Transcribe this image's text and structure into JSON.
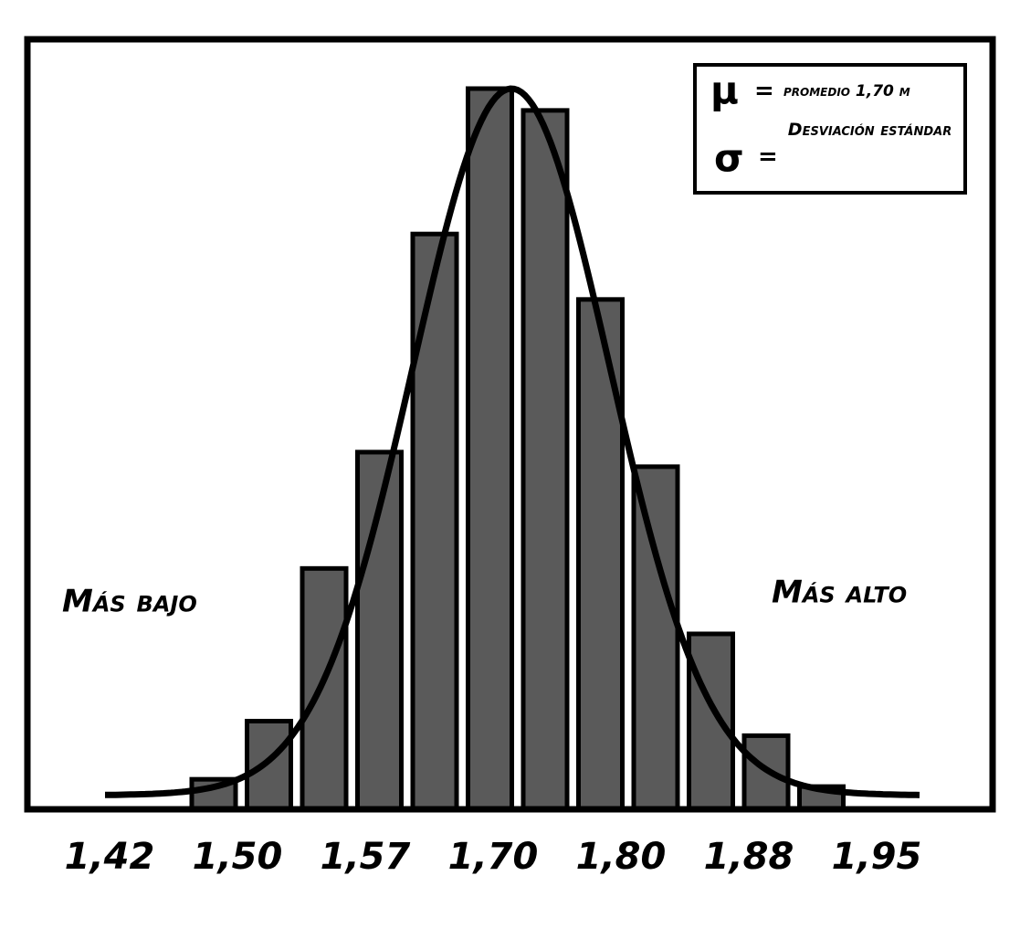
{
  "chart_data": {
    "type": "histogram",
    "values": [
      4,
      12,
      33,
      49,
      79,
      99,
      96,
      70,
      47,
      24,
      10,
      3
    ],
    "color": "#5a5a5a",
    "x_labels": [
      "1,42",
      "1,50",
      "1,57",
      "1,70",
      "1,80",
      "1,88",
      "1,95"
    ],
    "annotations": {
      "left": "Más bajo",
      "right": "Más alto"
    },
    "legend": [
      {
        "symbol": "μ",
        "equals": "=",
        "text": "promedio 1,70 m"
      },
      {
        "symbol": "σ",
        "equals": "=",
        "text": "Desviación estándar"
      }
    ]
  }
}
